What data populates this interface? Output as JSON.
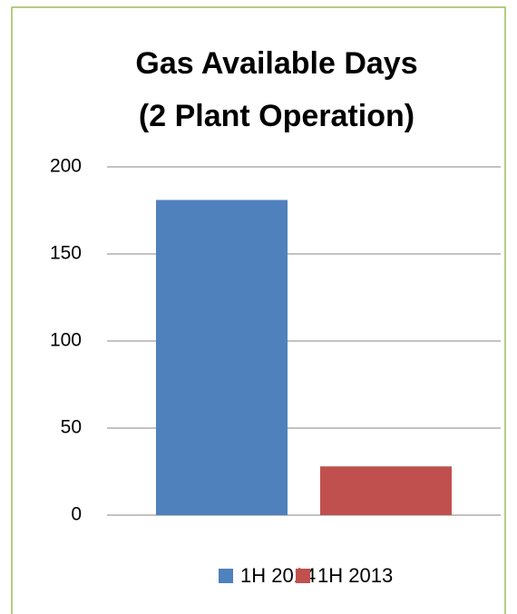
{
  "chart_data": {
    "type": "bar",
    "title": [
      "Gas Available Days",
      "(2 Plant Operation)"
    ],
    "categories": [
      null
    ],
    "series": [
      {
        "name": "1H 2014",
        "color": "#4f81bd",
        "values": [
          181
        ]
      },
      {
        "name": "1H 2013",
        "color": "#c0504d",
        "values": [
          28
        ]
      }
    ],
    "ylim": [
      0,
      200
    ],
    "yticks": [
      0,
      50,
      100,
      150,
      200
    ],
    "grid": true,
    "legend": "bottom"
  }
}
